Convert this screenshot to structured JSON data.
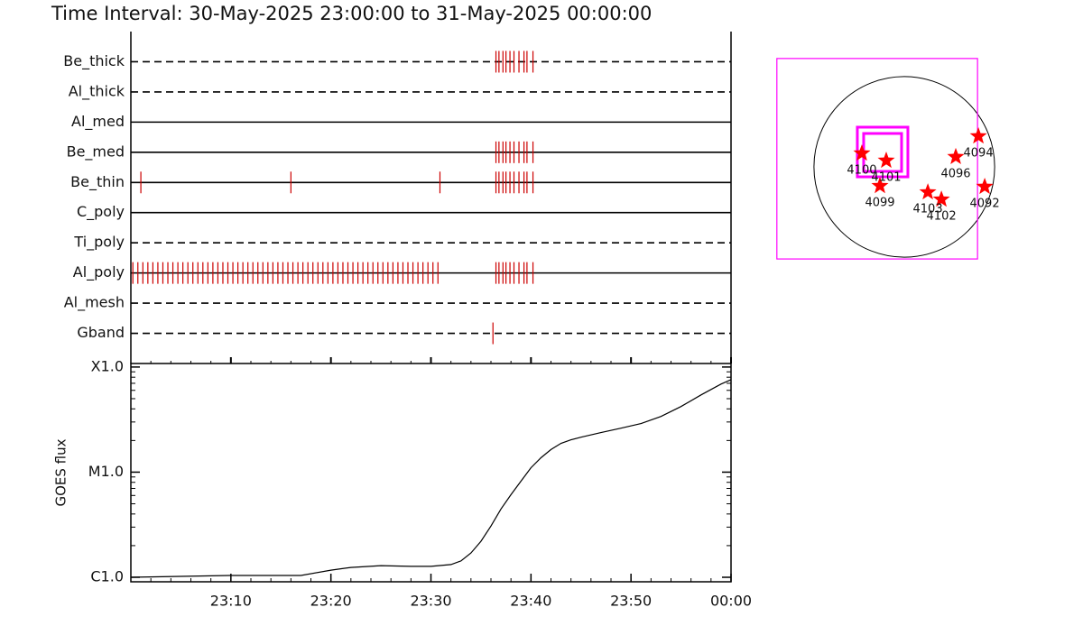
{
  "chart_data": [
    {
      "type": "event",
      "title": "Time Interval: 30-May-2025 23:00:00 to 31-May-2025 00:00:00",
      "color": "#cc0000",
      "xlim": [
        0,
        60
      ],
      "series": [
        {
          "name": "Be_thick",
          "linestyle": "dashed",
          "events": [
            36.5,
            36.8,
            37.2,
            37.5,
            37.9,
            38.3,
            38.8,
            39.3,
            39.6,
            40.2
          ]
        },
        {
          "name": "Al_thick",
          "linestyle": "dashed",
          "events": []
        },
        {
          "name": "Al_med",
          "linestyle": "solid",
          "events": []
        },
        {
          "name": "Be_med",
          "linestyle": "solid",
          "events": [
            36.5,
            36.8,
            37.2,
            37.5,
            37.9,
            38.3,
            38.8,
            39.3,
            39.6,
            40.2
          ]
        },
        {
          "name": "Be_thin",
          "linestyle": "solid",
          "events": [
            1.0,
            16.0,
            30.9,
            36.5,
            36.8,
            37.2,
            37.5,
            37.9,
            38.3,
            38.8,
            39.3,
            39.6,
            40.2
          ]
        },
        {
          "name": "C_poly",
          "linestyle": "solid",
          "events": []
        },
        {
          "name": "Ti_poly",
          "linestyle": "dashed",
          "events": []
        },
        {
          "name": "Al_poly",
          "linestyle": "solid",
          "events": [
            0.2,
            0.7,
            1.2,
            1.7,
            2.2,
            2.7,
            3.2,
            3.7,
            4.2,
            4.7,
            5.2,
            5.7,
            6.2,
            6.7,
            7.2,
            7.7,
            8.2,
            8.7,
            9.2,
            9.7,
            10.2,
            10.7,
            11.2,
            11.7,
            12.2,
            12.7,
            13.2,
            13.7,
            14.2,
            14.7,
            15.2,
            15.7,
            16.2,
            16.7,
            17.2,
            17.7,
            18.2,
            18.7,
            19.2,
            19.7,
            20.2,
            20.7,
            21.2,
            21.7,
            22.2,
            22.7,
            23.2,
            23.7,
            24.2,
            24.7,
            25.2,
            25.7,
            26.2,
            26.7,
            27.2,
            27.7,
            28.2,
            28.7,
            29.2,
            29.7,
            30.2,
            30.7,
            36.5,
            36.8,
            37.2,
            37.5,
            37.9,
            38.3,
            38.8,
            39.3,
            39.6,
            40.2
          ]
        },
        {
          "name": "Al_mesh",
          "linestyle": "dashed",
          "events": []
        },
        {
          "name": "Gband",
          "linestyle": "dashed",
          "events": [
            36.2
          ]
        }
      ]
    },
    {
      "type": "line",
      "ylabel": "GOES flux",
      "log_scale": true,
      "color": "#000000",
      "x": [
        0,
        5,
        10,
        15,
        17,
        20,
        22,
        25,
        28,
        30,
        32,
        33,
        34,
        35,
        36,
        37,
        38,
        39,
        40,
        41,
        42,
        43,
        44,
        45,
        47,
        49,
        51,
        53,
        55,
        57,
        59,
        60
      ],
      "values": [
        1e-06,
        1.02e-06,
        1.04e-06,
        1.04e-06,
        1.04e-06,
        1.17e-06,
        1.24e-06,
        1.29e-06,
        1.27e-06,
        1.27e-06,
        1.32e-06,
        1.43e-06,
        1.7e-06,
        2.2e-06,
        3.07e-06,
        4.46e-06,
        6.11e-06,
        8.22e-06,
        1.1e-05,
        1.37e-05,
        1.64e-05,
        1.88e-05,
        2.03e-05,
        2.15e-05,
        2.38e-05,
        2.62e-05,
        2.9e-05,
        3.39e-05,
        4.21e-05,
        5.43e-05,
        6.88e-05,
        7.59e-05
      ],
      "xlim": [
        0,
        60
      ],
      "xticks": [
        {
          "value": 10,
          "label": "23:10"
        },
        {
          "value": 20,
          "label": "23:20"
        },
        {
          "value": 30,
          "label": "23:30"
        },
        {
          "value": 40,
          "label": "23:40"
        },
        {
          "value": 50,
          "label": "23:50"
        },
        {
          "value": 60,
          "label": "00:00"
        }
      ],
      "ylim": [
        9.06e-07,
        0.000108
      ],
      "yticks": [
        {
          "value": 1e-06,
          "label": "C1.0"
        },
        {
          "value": 1e-05,
          "label": "M1.0"
        },
        {
          "value": 0.0001,
          "label": "X1.0"
        }
      ]
    },
    {
      "type": "scatter",
      "color": "#ff0000",
      "box_color": "#ff00ff",
      "xlim": [
        -1400,
        1400
      ],
      "ylim": [
        -1400,
        1400
      ],
      "sun_radius": 960,
      "labels": [
        "4100",
        "4101",
        "4099",
        "4103",
        "4102",
        "4096",
        "4094",
        "4092"
      ],
      "x": [
        -451,
        -192,
        -259,
        250,
        394,
        547,
        787,
        854
      ],
      "y": [
        144,
        67,
        -202,
        -269,
        -346,
        106,
        326,
        -211
      ],
      "boxes": [
        {
          "x": [
            -1354,
            778
          ],
          "y": [
            -979,
            1152
          ]
        },
        {
          "x": [
            -499,
            38
          ],
          "y": [
            -106,
            422
          ]
        },
        {
          "x": [
            -432,
            -29
          ],
          "y": [
            -48,
            355
          ]
        }
      ]
    }
  ]
}
